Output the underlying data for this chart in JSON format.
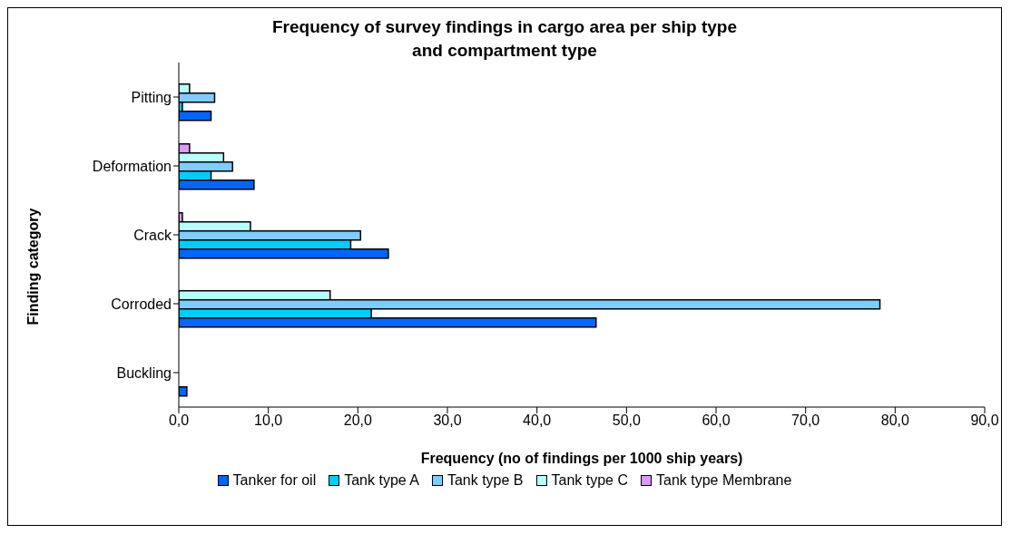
{
  "chart_data": {
    "type": "bar",
    "orientation": "horizontal",
    "title": "Frequency of survey findings in cargo area per ship type\nand compartment type",
    "xlabel": "Frequency (no of findings per 1000 ship years)",
    "ylabel": "Finding category",
    "categories": [
      "Pitting",
      "Deformation",
      "Crack",
      "Corroded",
      "Buckling"
    ],
    "series": [
      {
        "name": "Tanker for oil",
        "color": "#0066ff",
        "values": [
          3.6,
          8.4,
          23.4,
          46.6,
          0.9
        ]
      },
      {
        "name": "Tank type A",
        "color": "#00ccff",
        "values": [
          0.4,
          3.6,
          19.2,
          21.5,
          0
        ]
      },
      {
        "name": "Tank type B",
        "color": "#80ccff",
        "values": [
          4.0,
          6.0,
          20.3,
          78.3,
          0
        ]
      },
      {
        "name": "Tank type C",
        "color": "#b8ffff",
        "values": [
          1.2,
          5.0,
          8.0,
          16.9,
          0
        ]
      },
      {
        "name": "Tank type Membrane",
        "color": "#dd99ff",
        "values": [
          0,
          1.2,
          0.4,
          0,
          0
        ]
      }
    ],
    "xlim": [
      0,
      90
    ],
    "xticks": [
      {
        "value": 0,
        "label": "0,0"
      },
      {
        "value": 10,
        "label": "10,0"
      },
      {
        "value": 20,
        "label": "20,0"
      },
      {
        "value": 30,
        "label": "30,0"
      },
      {
        "value": 40,
        "label": "40,0"
      },
      {
        "value": 50,
        "label": "50,0"
      },
      {
        "value": 60,
        "label": "60,0"
      },
      {
        "value": 70,
        "label": "70,0"
      },
      {
        "value": 80,
        "label": "80,0"
      },
      {
        "value": 90,
        "label": "90,0"
      }
    ],
    "grid": false,
    "legend": "bottom"
  }
}
